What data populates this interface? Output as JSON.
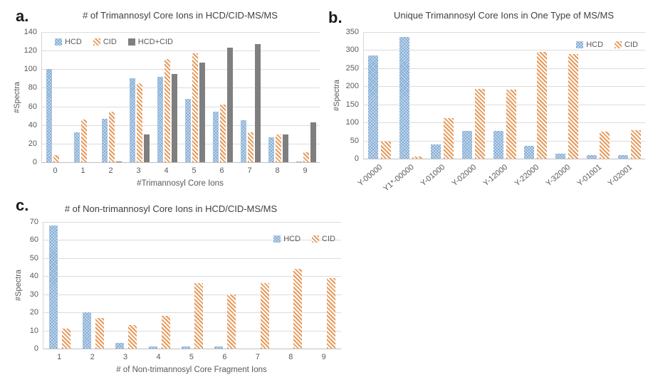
{
  "figure": {
    "background": "#ffffff",
    "colors": {
      "hcd_blue": "#7ea9d3",
      "cid_orange": "#e79a5b",
      "hcd_cid_gray": "#7f7f7f",
      "gridline": "#dcdcdc",
      "axis_text": "#595959",
      "title_text": "#3f3f3f"
    }
  },
  "chart_data": [
    {
      "type": "bar",
      "panel_label": "a.",
      "title": "# of Trimannosyl Core Ions in HCD/CID-MS/MS",
      "xlabel": "#Trimannosyl Core Ions",
      "ylabel": "#Spectra",
      "ymax": 140,
      "yticks": [
        140,
        120,
        100,
        80,
        60,
        40,
        20,
        0
      ],
      "ylim": [
        0,
        140
      ],
      "grid": true,
      "legend_position": "top-left",
      "categories": [
        "0",
        "1",
        "2",
        "3",
        "4",
        "5",
        "6",
        "7",
        "8",
        "9"
      ],
      "series": [
        {
          "name": "HCD",
          "style": "hcd",
          "values": [
            100,
            32,
            47,
            90,
            92,
            68,
            54,
            45,
            27,
            1
          ]
        },
        {
          "name": "CID",
          "style": "cid",
          "values": [
            8,
            46,
            54,
            85,
            111,
            117,
            62,
            32,
            30,
            11
          ]
        },
        {
          "name": "HCD+CID",
          "style": "both",
          "values": [
            0,
            0,
            1,
            30,
            95,
            107,
            123,
            127,
            30,
            43
          ]
        }
      ]
    },
    {
      "type": "bar",
      "panel_label": "b.",
      "title": "Unique Trimannosyl Core Ions in One Type of MS/MS",
      "xlabel": "",
      "ylabel": "#Spectra",
      "ymax": 350,
      "yticks": [
        350,
        300,
        250,
        200,
        150,
        100,
        50,
        0
      ],
      "ylim": [
        0,
        350
      ],
      "grid": true,
      "legend_position": "top-right",
      "categories": [
        "Y-00000",
        "Y1*-00000",
        "Y-01000",
        "Y-02000",
        "Y-12000",
        "Y-22000",
        "Y-32000",
        "Y-01001",
        "Y-02001"
      ],
      "series": [
        {
          "name": "HCD",
          "style": "hcd",
          "values": [
            285,
            336,
            39,
            76,
            77,
            35,
            13,
            10,
            9
          ]
        },
        {
          "name": "CID",
          "style": "cid",
          "values": [
            47,
            5,
            112,
            193,
            191,
            294,
            290,
            75,
            78
          ]
        }
      ]
    },
    {
      "type": "bar",
      "panel_label": "c.",
      "title": "# of Non-trimannosyl Core Ions in HCD/CID-MS/MS",
      "xlabel": "# of Non-trimannosyl Core Fragment Ions",
      "ylabel": "#Spectra",
      "ymax": 70,
      "yticks": [
        70,
        60,
        50,
        40,
        30,
        20,
        10,
        0
      ],
      "ylim": [
        0,
        70
      ],
      "grid": true,
      "legend_position": "top-right",
      "categories": [
        "1",
        "2",
        "3",
        "4",
        "5",
        "6",
        "7",
        "8",
        "9"
      ],
      "series": [
        {
          "name": "HCD",
          "style": "hcd",
          "values": [
            68,
            20,
            3,
            1,
            1,
            1,
            0,
            0,
            0
          ]
        },
        {
          "name": "CID",
          "style": "cid",
          "values": [
            11,
            17,
            13,
            18,
            36,
            30,
            36,
            44,
            39
          ]
        }
      ]
    }
  ]
}
